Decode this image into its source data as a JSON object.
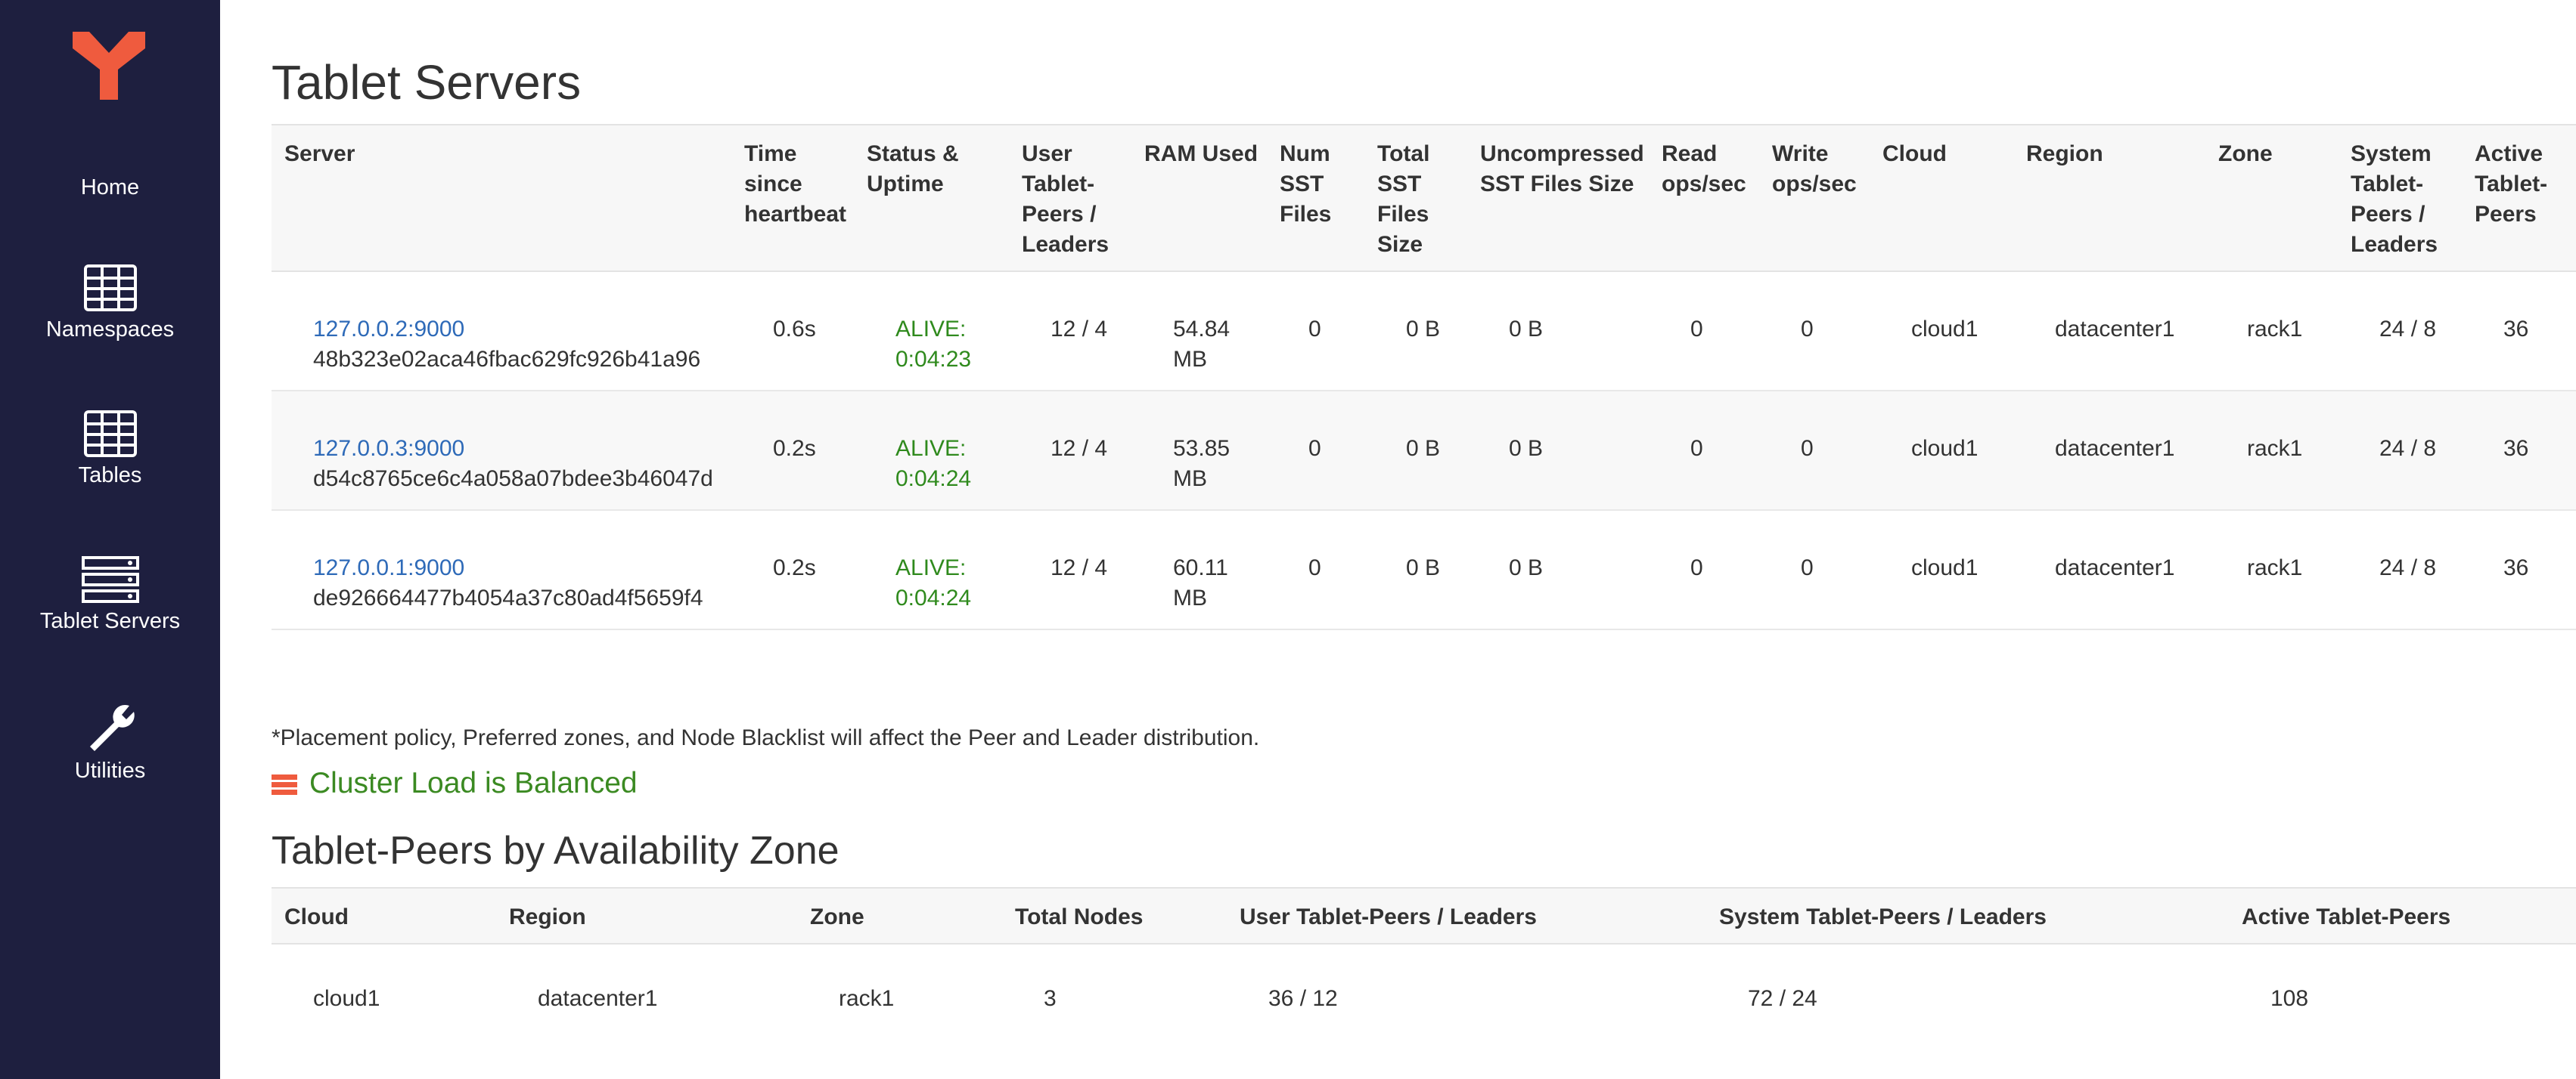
{
  "sidebar": {
    "items": [
      "Home",
      "Namespaces",
      "Tables",
      "Tablet Servers",
      "Utilities"
    ]
  },
  "header": {
    "title": "Tablet Servers"
  },
  "table": {
    "columns": [
      "Server",
      "Time since heartbeat",
      "Status & Uptime",
      "User Tablet-Peers / Leaders",
      "RAM Used",
      "Num SST Files",
      "Total SST Files Size",
      "Uncompressed SST Files Size",
      "Read ops/sec",
      "Write ops/sec",
      "Cloud",
      "Region",
      "Zone",
      "System Tablet-Peers / Leaders",
      "Active Tablet-Peers"
    ],
    "rows": [
      [
        {
          "address": "127.0.0.2:9000",
          "uuid": "48b323e02aca46fbac629fc926b41a96"
        },
        "0.6s",
        "ALIVE: 0:04:23",
        "12 / 4",
        "54.84 MB",
        "0",
        "0 B",
        "0 B",
        "0",
        "0",
        "cloud1",
        "datacenter1",
        "rack1",
        "24 / 8",
        "36"
      ],
      [
        {
          "address": "127.0.0.3:9000",
          "uuid": "d54c8765ce6c4a058a07bdee3b46047d"
        },
        "0.2s",
        "ALIVE: 0:04:24",
        "12 / 4",
        "53.85 MB",
        "0",
        "0 B",
        "0 B",
        "0",
        "0",
        "cloud1",
        "datacenter1",
        "rack1",
        "24 / 8",
        "36"
      ],
      [
        {
          "address": "127.0.0.1:9000",
          "uuid": "de926664477b4054a37c80ad4f5659f4"
        },
        "0.2s",
        "ALIVE: 0:04:24",
        "12 / 4",
        "60.11 MB",
        "0",
        "0 B",
        "0 B",
        "0",
        "0",
        "cloud1",
        "datacenter1",
        "rack1",
        "24 / 8",
        "36"
      ]
    ]
  },
  "footnote": "*Placement policy, Preferred zones, and Node Blacklist will affect the Peer and Leader distribution.",
  "balance_status": "Cluster Load is Balanced",
  "zone_section": {
    "title": "Tablet-Peers by Availability Zone",
    "columns": [
      "Cloud",
      "Region",
      "Zone",
      "Total Nodes",
      "User Tablet-Peers / Leaders",
      "System Tablet-Peers / Leaders",
      "Active Tablet-Peers"
    ],
    "rows": [
      [
        "cloud1",
        "datacenter1",
        "rack1",
        "3",
        "36 / 12",
        "72 / 24",
        "108"
      ]
    ]
  }
}
